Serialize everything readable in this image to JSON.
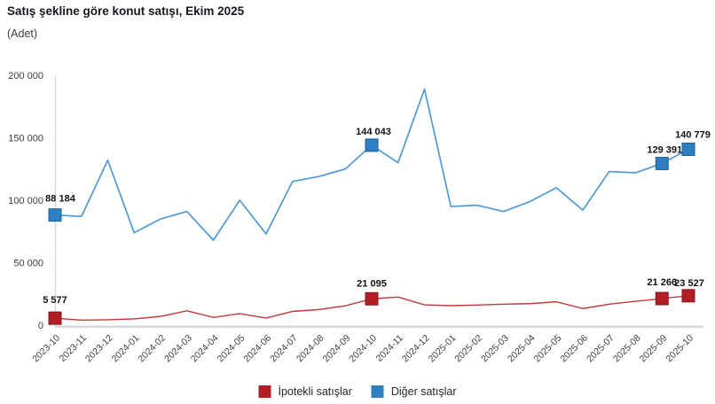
{
  "chart_data": {
    "type": "line",
    "title": "Satış şekline göre konut satışı, Ekim 2025",
    "unit_label": "(Adet)",
    "categories": [
      "2023-10",
      "2023-11",
      "2023-12",
      "2024-01",
      "2024-02",
      "2024-03",
      "2024-04",
      "2024-05",
      "2024-06",
      "2024-07",
      "2024-08",
      "2024-09",
      "2024-10",
      "2024-11",
      "2024-12",
      "2025-01",
      "2025-02",
      "2025-03",
      "2025-04",
      "2025-05",
      "2025-06",
      "2025-07",
      "2025-08",
      "2025-09",
      "2025-10"
    ],
    "series": [
      {
        "name": "İpotekli satışlar",
        "slug": "ipotekli-satislar",
        "color": "#b11f24",
        "line_color": "#c0383a",
        "values": [
          5577,
          4000,
          4300,
          5000,
          7000,
          11500,
          6200,
          9200,
          5700,
          11000,
          12500,
          15500,
          21095,
          22500,
          16300,
          15600,
          16100,
          16800,
          17200,
          18700,
          13300,
          16800,
          19100,
          21266,
          23527
        ],
        "labeled_indices": [
          0,
          12,
          23,
          24
        ],
        "labeled_values": [
          "5 577",
          "21 095",
          "21 266",
          "23 527"
        ]
      },
      {
        "name": "Diğer satışlar",
        "slug": "diger-satislar",
        "color": "#2d7fc1",
        "line_color": "#4f9ad6",
        "values": [
          88184,
          87000,
          132000,
          74000,
          85000,
          91000,
          68000,
          100000,
          73000,
          115000,
          119000,
          125000,
          144043,
          130000,
          189000,
          95000,
          96000,
          91000,
          99000,
          110000,
          92000,
          123000,
          122000,
          129391,
          140779
        ],
        "labeled_indices": [
          0,
          12,
          23,
          24
        ],
        "labeled_values": [
          "88 184",
          "144 043",
          "129 391",
          "140 779"
        ]
      }
    ],
    "ylim": [
      0,
      200000
    ],
    "yticks": [
      0,
      50000,
      100000,
      150000,
      200000
    ],
    "ytick_labels": [
      "0",
      "50 000",
      "100 000",
      "150 000",
      "200 000"
    ],
    "grid": false,
    "legend_position": "bottom",
    "axis_color": "#d9d9d9",
    "tick_text_color": "#3d3d3d",
    "data_label_color": "#111111"
  }
}
